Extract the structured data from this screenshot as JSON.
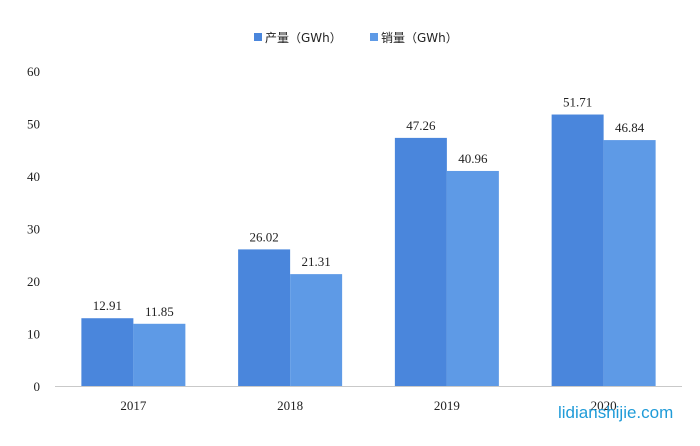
{
  "chart_data": {
    "type": "bar",
    "title": "",
    "xlabel": "",
    "ylabel": "",
    "categories": [
      "2017",
      "2018",
      "2019",
      "2020"
    ],
    "series": [
      {
        "name": "产量（GWh）",
        "values": [
          12.91,
          26.02,
          47.26,
          51.71
        ],
        "value_labels": [
          "12.91",
          "26.02",
          "47.26",
          "51.71"
        ],
        "color": "#4a86dc"
      },
      {
        "name": "销量（GWh）",
        "values": [
          11.85,
          21.31,
          40.96,
          46.84
        ],
        "value_labels": [
          "11.85",
          "21.31",
          "40.96",
          "46.84"
        ],
        "color": "#5e9ae6"
      }
    ],
    "ylim": [
      0,
      60
    ],
    "yticks": [
      0,
      10,
      20,
      30,
      40,
      50,
      60
    ],
    "grid": false,
    "legend_position": "top-center"
  },
  "watermark": "lidianshijie.com"
}
